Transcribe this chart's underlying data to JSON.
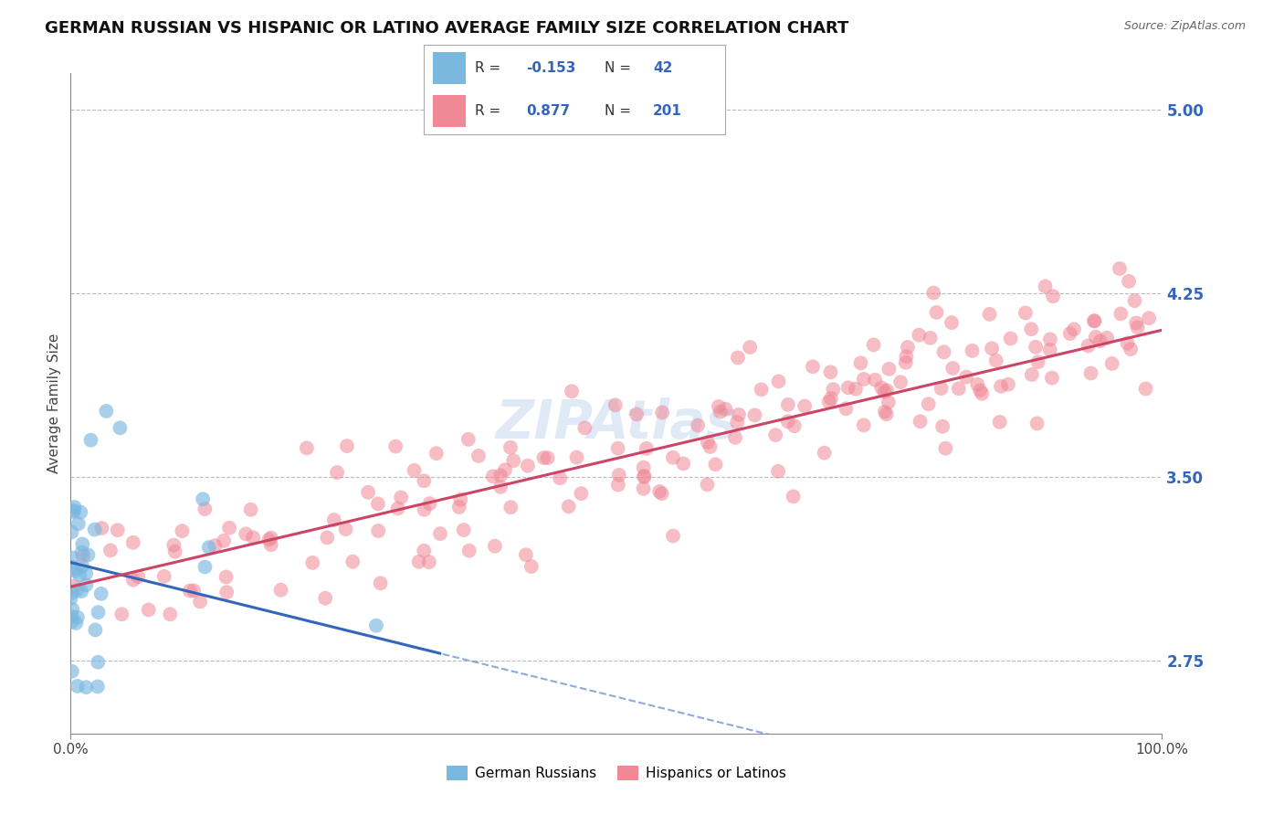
{
  "title": "GERMAN RUSSIAN VS HISPANIC OR LATINO AVERAGE FAMILY SIZE CORRELATION CHART",
  "source": "Source: ZipAtlas.com",
  "xlabel": "",
  "ylabel": "Average Family Size",
  "xlim": [
    0,
    1
  ],
  "ylim": [
    2.45,
    5.15
  ],
  "yticks": [
    2.75,
    3.5,
    4.25,
    5.0
  ],
  "xticks": [
    0.0,
    1.0
  ],
  "xticklabels": [
    "0.0%",
    "100.0%"
  ],
  "yticklabels": [
    "2.75",
    "3.50",
    "4.25",
    "5.00"
  ],
  "watermark": "ZIPAtlas",
  "legend_r1_val": "-0.153",
  "legend_n1_val": "42",
  "legend_r2_val": "0.877",
  "legend_n2_val": "201",
  "blue_color": "#7ab8e0",
  "pink_color": "#f08896",
  "blue_line_color": "#3366bb",
  "pink_line_color": "#cc4466",
  "legend_label1": "German Russians",
  "legend_label2": "Hispanics or Latinos",
  "title_fontsize": 13,
  "axis_label_fontsize": 11,
  "tick_fontsize": 11,
  "blue_N": 42,
  "pink_N": 201,
  "blue_intercept": 3.15,
  "blue_slope": -1.1,
  "pink_intercept": 3.05,
  "pink_slope": 1.05,
  "background_color": "#ffffff",
  "grid_color": "#bbbbbb"
}
